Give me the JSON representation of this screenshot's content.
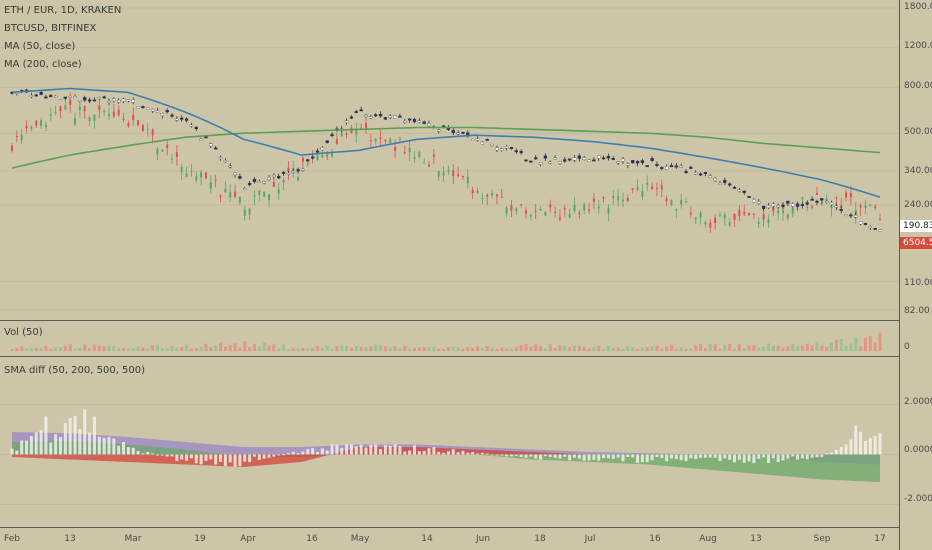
{
  "legend": {
    "symbol": "ETH / EUR, 1D, KRAKEN",
    "compare": "BTCUSD, BITFINEX",
    "ma50": "MA (50, close)",
    "ma200": "MA (200, close)",
    "volume": "Vol (50)",
    "smadiff": "SMA diff (50, 200, 500, 500)"
  },
  "price_axis": [
    "1800.00",
    "1200.00",
    "800.00",
    "500.00",
    "340.00",
    "240.00",
    "110.00",
    "82.00"
  ],
  "volume_axis": [
    "0"
  ],
  "sma_axis": [
    "2.0000",
    "0.0000",
    "-2.0000"
  ],
  "tags": {
    "eth_last": "190.83",
    "btc_last": "6504.5"
  },
  "x_axis": [
    "Feb",
    "13",
    "Mar",
    "19",
    "Apr",
    "16",
    "May",
    "14",
    "Jun",
    "18",
    "Jul",
    "16",
    "Aug",
    "13",
    "Sep",
    "17"
  ],
  "colors": {
    "background": "#cdc5a8",
    "up": "#ffffff",
    "down": "#2c2c6e",
    "btc_up": "#5aa56a",
    "btc_down": "#e05050",
    "ma50": "#3a7fb0",
    "ma200": "#5aa052",
    "tag_eth": "#ffffff",
    "tag_btc": "#d84a3a"
  },
  "chart_data": {
    "type": "line",
    "x": [
      "Feb",
      "13",
      "Mar",
      "19",
      "Apr",
      "16",
      "May",
      "14",
      "Jun",
      "18",
      "Jul",
      "16",
      "Aug",
      "13",
      "Sep",
      "17"
    ],
    "y_scale": "log",
    "series": [
      {
        "name": "ETH / EUR, 1D, KRAKEN",
        "values": [
          750,
          720,
          700,
          560,
          290,
          340,
          620,
          560,
          480,
          380,
          390,
          370,
          330,
          235,
          250,
          185
        ]
      },
      {
        "name": "BTCUSD, BITFINEX",
        "values": [
          9000,
          10500,
          10000,
          8000,
          6700,
          8000,
          9600,
          8600,
          7300,
          6400,
          6600,
          7400,
          6200,
          6300,
          7000,
          6500
        ]
      },
      {
        "name": "MA (50, close)",
        "values": [
          760,
          790,
          760,
          620,
          470,
          400,
          420,
          470,
          490,
          480,
          460,
          430,
          390,
          350,
          310,
          260
        ]
      },
      {
        "name": "MA (200, close)",
        "values": [
          350,
          400,
          440,
          480,
          500,
          510,
          520,
          530,
          530,
          520,
          510,
          500,
          480,
          450,
          430,
          410
        ]
      }
    ],
    "volume": [
      0.2,
      0.3,
      0.2,
      0.3,
      0.4,
      0.2,
      0.3,
      0.2,
      0.2,
      0.3,
      0.2,
      0.2,
      0.3,
      0.3,
      0.4,
      0.8
    ],
    "sma_diff": {
      "ylim": [
        -2.5,
        3.5
      ],
      "ticks": [
        2.0,
        0.0,
        -2.0
      ],
      "purple": [
        0.9,
        0.85,
        0.7,
        0.5,
        0.3,
        0.3,
        0.4,
        0.4,
        0.3,
        0.2,
        0.1,
        0.05,
        0.0,
        -0.1,
        -0.3,
        -0.4
      ],
      "green": [
        0.5,
        0.55,
        0.4,
        0.2,
        -0.1,
        -0.1,
        0.05,
        0.05,
        0.0,
        -0.2,
        -0.3,
        -0.4,
        -0.6,
        -0.8,
        -1.0,
        -1.1
      ],
      "red": [
        -0.1,
        -0.2,
        -0.3,
        -0.4,
        -0.5,
        -0.3,
        0.3,
        0.3,
        0.2,
        0.1,
        0.0,
        0.0,
        0.0,
        0.0,
        0.0,
        0.0
      ],
      "bars": [
        0.3,
        2.2,
        0.3,
        -0.3,
        -0.4,
        0.2,
        0.4,
        0.3,
        0.1,
        -0.2,
        -0.2,
        -0.3,
        -0.2,
        -0.3,
        -0.1,
        1.8
      ]
    }
  }
}
